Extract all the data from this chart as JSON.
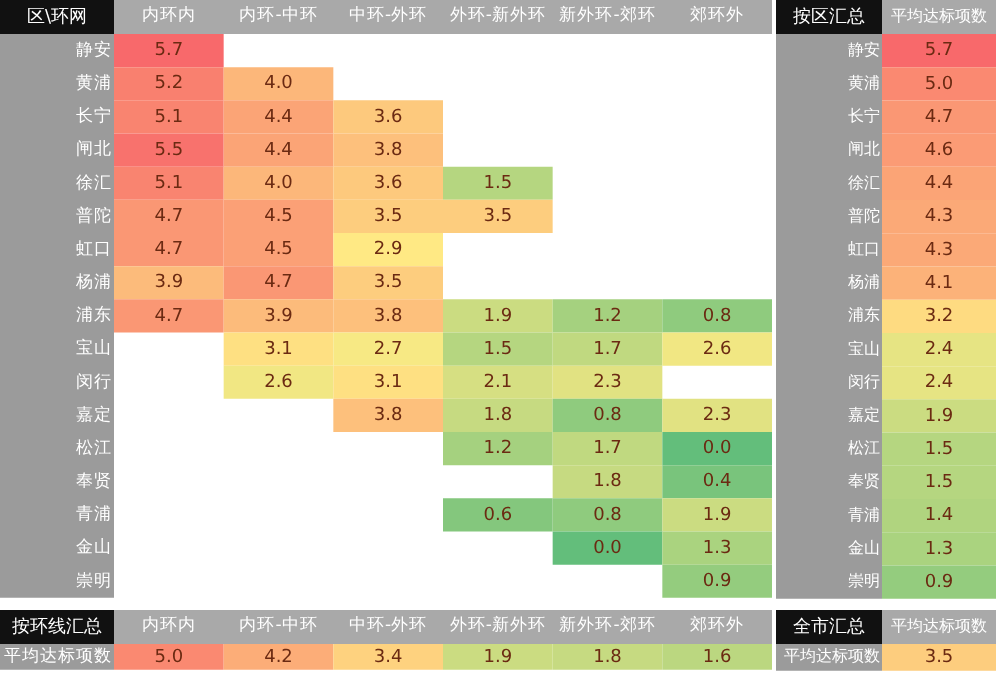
{
  "chart_data": [
    {
      "type": "heatmap",
      "ylabel": "区\\环网",
      "categories": [
        "内环内",
        "内环-中环",
        "中环-外环",
        "外环-新外环",
        "新外环-郊环",
        "郊环外"
      ],
      "y_categories": [
        "静安",
        "黄浦",
        "长宁",
        "闸北",
        "徐汇",
        "普陀",
        "虹口",
        "杨浦",
        "浦东",
        "宝山",
        "闵行",
        "嘉定",
        "松江",
        "奉贤",
        "青浦",
        "金山",
        "崇明"
      ],
      "cells": [
        [
          5.7,
          null,
          null,
          null,
          null,
          null
        ],
        [
          5.2,
          4.0,
          null,
          null,
          null,
          null
        ],
        [
          5.1,
          4.4,
          3.6,
          null,
          null,
          null
        ],
        [
          5.5,
          4.4,
          3.8,
          null,
          null,
          null
        ],
        [
          5.1,
          4.0,
          3.6,
          1.5,
          null,
          null
        ],
        [
          4.7,
          4.5,
          3.5,
          3.5,
          null,
          null
        ],
        [
          4.7,
          4.5,
          2.9,
          null,
          null,
          null
        ],
        [
          3.9,
          4.7,
          3.5,
          null,
          null,
          null
        ],
        [
          4.7,
          3.9,
          3.8,
          1.9,
          1.2,
          0.8
        ],
        [
          null,
          3.1,
          2.7,
          1.5,
          1.7,
          2.6
        ],
        [
          null,
          2.6,
          3.1,
          2.1,
          2.3,
          null
        ],
        [
          null,
          null,
          3.8,
          1.8,
          0.8,
          2.3
        ],
        [
          null,
          null,
          null,
          1.2,
          1.7,
          0.0
        ],
        [
          null,
          null,
          null,
          null,
          1.8,
          0.4
        ],
        [
          null,
          null,
          null,
          0.6,
          0.8,
          1.9
        ],
        [
          null,
          null,
          null,
          null,
          0.0,
          1.3
        ],
        [
          null,
          null,
          null,
          null,
          null,
          0.9
        ]
      ],
      "cell_labels": [
        [
          "5.7",
          null,
          null,
          null,
          null,
          null
        ],
        [
          "5.2",
          "4.0",
          null,
          null,
          null,
          null
        ],
        [
          "5.1",
          "4.4",
          "3.6",
          null,
          null,
          null
        ],
        [
          "5.5",
          "4.4",
          "3.8",
          null,
          null,
          null
        ],
        [
          "5.1",
          "4.0",
          "3.6",
          "1.5",
          null,
          null
        ],
        [
          "4.7",
          "4.5",
          "3.5",
          "3.5",
          null,
          null
        ],
        [
          "4.7",
          "4.5",
          "2.9",
          null,
          null,
          null
        ],
        [
          "3.9",
          "4.7",
          "3.5",
          null,
          null,
          null
        ],
        [
          "4.7",
          "3.9",
          "3.8",
          "1.9",
          "1.2",
          "0.8"
        ],
        [
          null,
          "3.1",
          "2.7",
          "1.5",
          "1.7",
          "2.6"
        ],
        [
          null,
          "2.6",
          "3.1",
          "2.1",
          "2.3",
          null
        ],
        [
          null,
          null,
          "3.8",
          "1.8",
          "0.8",
          "2.3"
        ],
        [
          null,
          null,
          null,
          "1.2",
          "1.7",
          "0.0"
        ],
        [
          null,
          null,
          null,
          null,
          "1.8",
          "0.4"
        ],
        [
          null,
          null,
          null,
          "0.6",
          "0.8",
          "1.9"
        ],
        [
          null,
          null,
          null,
          null,
          "0.0",
          "1.3"
        ],
        [
          null,
          null,
          null,
          null,
          null,
          "0.9"
        ]
      ]
    },
    {
      "type": "heatmap",
      "ylabel": "按区汇总",
      "categories": [
        "平均达标项数"
      ],
      "y_categories": [
        "静安",
        "黄浦",
        "长宁",
        "闸北",
        "徐汇",
        "普陀",
        "虹口",
        "杨浦",
        "浦东",
        "宝山",
        "闵行",
        "嘉定",
        "松江",
        "奉贤",
        "青浦",
        "金山",
        "崇明"
      ],
      "cells": [
        [
          5.7
        ],
        [
          5.0
        ],
        [
          4.7
        ],
        [
          4.6
        ],
        [
          4.4
        ],
        [
          4.3
        ],
        [
          4.3
        ],
        [
          4.1
        ],
        [
          3.2
        ],
        [
          2.4
        ],
        [
          2.4
        ],
        [
          1.9
        ],
        [
          1.5
        ],
        [
          1.5
        ],
        [
          1.4
        ],
        [
          1.3
        ],
        [
          0.9
        ]
      ],
      "cell_labels": [
        [
          "5.7"
        ],
        [
          "5.0"
        ],
        [
          "4.7"
        ],
        [
          "4.6"
        ],
        [
          "4.4"
        ],
        [
          "4.3"
        ],
        [
          "4.3"
        ],
        [
          "4.1"
        ],
        [
          "3.2"
        ],
        [
          "2.4"
        ],
        [
          "2.4"
        ],
        [
          "1.9"
        ],
        [
          "1.5"
        ],
        [
          "1.5"
        ],
        [
          "1.4"
        ],
        [
          "1.3"
        ],
        [
          "0.9"
        ]
      ]
    },
    {
      "type": "heatmap",
      "ylabel": "按环线汇总",
      "categories": [
        "内环内",
        "内环-中环",
        "中环-外环",
        "外环-新外环",
        "新外环-郊环",
        "郊环外"
      ],
      "y_categories": [
        "平均达标项数"
      ],
      "cells": [
        [
          5.0,
          4.2,
          3.4,
          1.9,
          1.8,
          1.6
        ]
      ],
      "cell_labels": [
        [
          "5.0",
          "4.2",
          "3.4",
          "1.9",
          "1.8",
          "1.6"
        ]
      ]
    },
    {
      "type": "heatmap",
      "ylabel": "全市汇总",
      "categories": [
        "平均达标项数"
      ],
      "y_categories": [
        "平均达标项数"
      ],
      "cells": [
        [
          3.5
        ]
      ],
      "cell_labels": [
        [
          "3.5"
        ]
      ]
    }
  ]
}
